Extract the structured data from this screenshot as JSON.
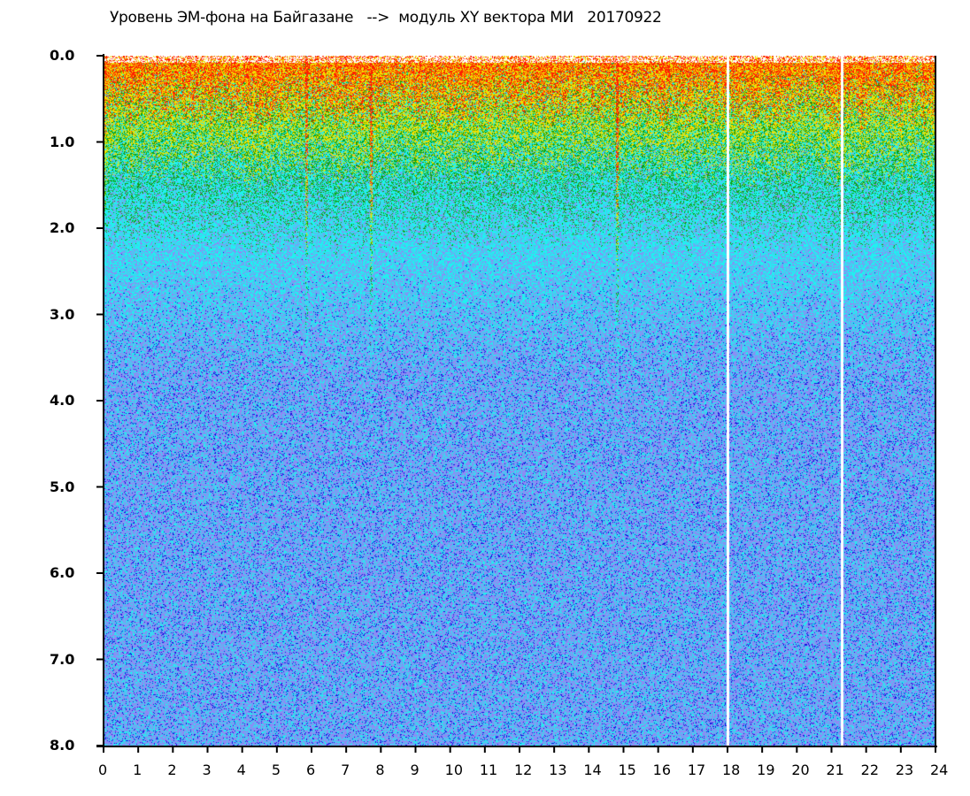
{
  "chart_data": {
    "type": "heatmap",
    "title": "Уровень ЭМ-фона на Байгазане   -->  модуль XY вектора МИ   20170922",
    "xlabel": "",
    "ylabel": "",
    "xlim": [
      0,
      24
    ],
    "ylim": [
      0.0,
      8.0
    ],
    "y_inverted": true,
    "x_ticks": [
      "0",
      "1",
      "2",
      "3",
      "4",
      "5",
      "6",
      "7",
      "8",
      "9",
      "10",
      "11",
      "12",
      "13",
      "14",
      "15",
      "16",
      "17",
      "18",
      "19",
      "20",
      "21",
      "22",
      "23",
      "24"
    ],
    "y_ticks": [
      "0.0",
      "1.0",
      "2.0",
      "3.0",
      "4.0",
      "5.0",
      "6.0",
      "7.0",
      "8.0"
    ],
    "color_levels": [
      {
        "name": "saturated",
        "color": "#ffffff"
      },
      {
        "name": "highest",
        "color": "#ff2000"
      },
      {
        "name": "high",
        "color": "#f0e000"
      },
      {
        "name": "medium-high",
        "color": "#10a010"
      },
      {
        "name": "medium",
        "color": "#20f0f0"
      },
      {
        "name": "low",
        "color": "#8c8cf4"
      },
      {
        "name": "lowest",
        "color": "#1010e0"
      }
    ],
    "dominant_level_by_y": [
      {
        "y_range": [
          0.0,
          0.3
        ],
        "level": "highest"
      },
      {
        "y_range": [
          0.3,
          0.9
        ],
        "level": "high"
      },
      {
        "y_range": [
          0.9,
          1.6
        ],
        "level": "medium-high"
      },
      {
        "y_range": [
          1.6,
          3.0
        ],
        "level": "medium"
      },
      {
        "y_range": [
          3.0,
          8.0
        ],
        "level": "low"
      }
    ],
    "gap_lines_x": [
      18.0,
      21.3
    ],
    "interference_lines_x": [
      5.85,
      7.7,
      14.8
    ]
  }
}
